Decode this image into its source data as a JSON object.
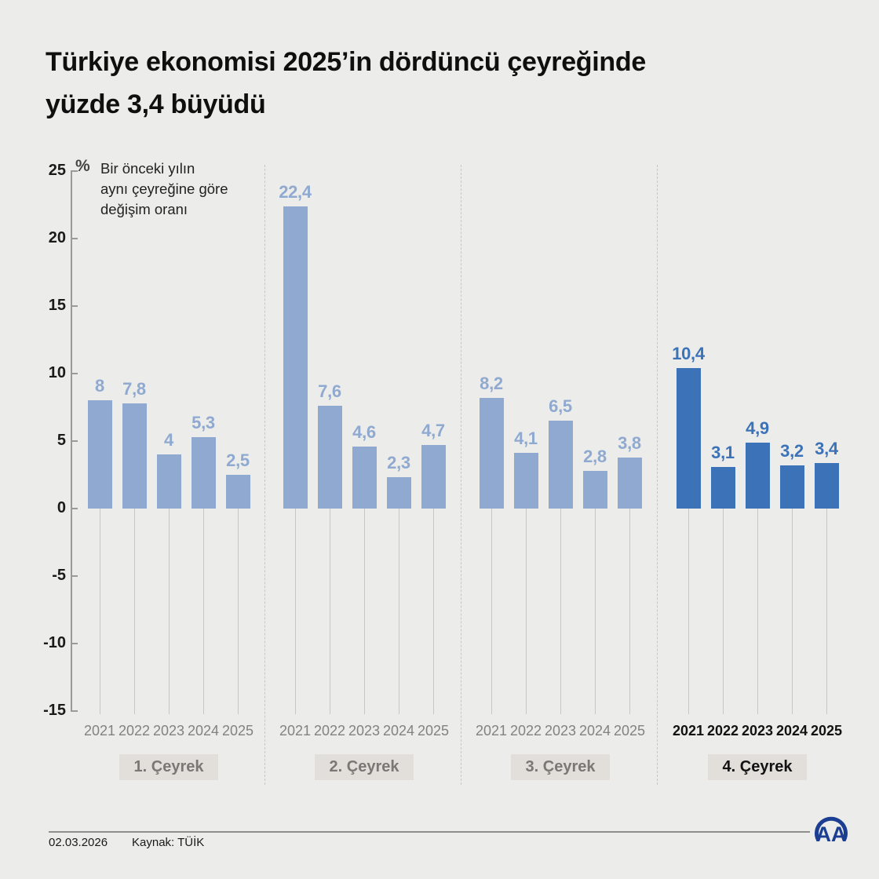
{
  "title": {
    "line1": "Türkiye ekonomisi 2025’in dördüncü çeyreğinde",
    "line2": "yüzde 3,4 büyüdü"
  },
  "chart_data": {
    "type": "bar",
    "unit_symbol": "%",
    "note_lines": [
      "Bir önceki yılın",
      "aynı çeyreğine göre",
      "değişim oranı"
    ],
    "categories": [
      "2021",
      "2022",
      "2023",
      "2024",
      "2025"
    ],
    "groups": [
      {
        "label": "1. Çeyrek",
        "highlighted": false,
        "values": [
          8,
          7.8,
          4,
          5.3,
          2.5
        ],
        "display": [
          "8",
          "7,8",
          "4",
          "5,3",
          "2,5"
        ]
      },
      {
        "label": "2. Çeyrek",
        "highlighted": false,
        "values": [
          22.4,
          7.6,
          4.6,
          2.3,
          4.7
        ],
        "display": [
          "22,4",
          "7,6",
          "4,6",
          "2,3",
          "4,7"
        ]
      },
      {
        "label": "3. Çeyrek",
        "highlighted": false,
        "values": [
          8.2,
          4.1,
          6.5,
          2.8,
          3.8
        ],
        "display": [
          "8,2",
          "4,1",
          "6,5",
          "2,8",
          "3,8"
        ]
      },
      {
        "label": "4. Çeyrek",
        "highlighted": true,
        "values": [
          10.4,
          3.1,
          4.9,
          3.2,
          3.4
        ],
        "display": [
          "10,4",
          "3,1",
          "4,9",
          "3,2",
          "3,4"
        ]
      }
    ],
    "y_ticks": [
      25,
      20,
      15,
      10,
      5,
      0,
      -5,
      -10,
      -15
    ],
    "ylim": [
      -15,
      25
    ],
    "legend_position": "top-left",
    "grid": false,
    "colors": {
      "bar": "#8fa9d0",
      "bar_highlight": "#3b72b8",
      "background": "#ececea"
    }
  },
  "footer": {
    "date": "02.03.2026",
    "source": "Kaynak: TÜİK",
    "logo": "aa-agency-logo"
  }
}
